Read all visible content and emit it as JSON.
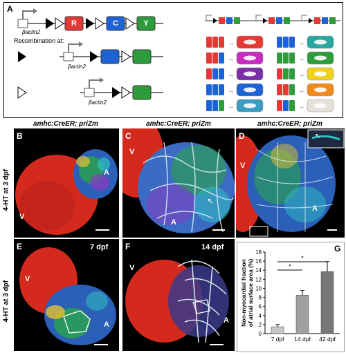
{
  "panelA": {
    "label": "A",
    "promoter": "βactin2",
    "cassettes": [
      "R",
      "C",
      "Y"
    ],
    "recombination_title": "Recombination at:",
    "combo_rows": [
      {
        "left": [
          "#e53935",
          "#e53935",
          "#e53935"
        ],
        "leftResult": "#e53935",
        "right": [
          "#1e63d6",
          "#1e63d6",
          "#1e63d6"
        ],
        "rightResult": "#2aa7a0"
      },
      {
        "left": [
          "#e53935",
          "#e53935",
          "#1e63d6"
        ],
        "leftResult": "#c72bc0",
        "right": [
          "#2e9c3a",
          "#2e9c3a",
          "#2e9c3a"
        ],
        "rightResult": "#2e9c3a"
      },
      {
        "left": [
          "#e53935",
          "#1e63d6",
          "#1e63d6"
        ],
        "leftResult": "#7a2fa8",
        "right": [
          "#e53935",
          "#2e9c3a",
          "#2e9c3a"
        ],
        "rightResult": "#f0d21e"
      },
      {
        "left": [
          "#1e63d6",
          "#1e63d6",
          "#1e63d6"
        ],
        "leftResult": "#1e63d6",
        "right": [
          "#e53935",
          "#e53935",
          "#2e9c3a"
        ],
        "rightResult": "#f08a1e"
      },
      {
        "left": [
          "#1e63d6",
          "#1e63d6",
          "#2e9c3a"
        ],
        "leftResult": "#3a9cc0",
        "right": [
          "#e53935",
          "#1e63d6",
          "#2e9c3a"
        ],
        "rightResult": "#e6e2da"
      }
    ]
  },
  "panels": {
    "B": {
      "label": "B",
      "title": "amhc:CreER; priZm",
      "marks": [
        "A",
        "V"
      ]
    },
    "C": {
      "label": "C",
      "title": "amhc:CreER; priZm",
      "marks": [
        "V",
        "A"
      ]
    },
    "D": {
      "label": "D",
      "title": "amhc:CreER; priZm",
      "marks": [
        "V",
        "A"
      ]
    },
    "E": {
      "label": "E",
      "stage": "7 dpf",
      "marks": [
        "V",
        "A"
      ]
    },
    "F": {
      "label": "F",
      "stage": "14 dpf",
      "marks": [
        "V",
        "A"
      ]
    },
    "G": {
      "label": "G"
    }
  },
  "row_label_top": "4-HT at 3 dpf",
  "row_label_bottom": "4-HT at 3 dpf",
  "chart_data": {
    "type": "bar",
    "categories": [
      "7 dpf",
      "14 dpf",
      "42 dpf"
    ],
    "values": [
      1.5,
      8.5,
      13.7
    ],
    "errors": [
      0.5,
      1.0,
      2.2
    ],
    "ylabel": "Non-myocardial fraction of atrial surface area (%)",
    "ylim": [
      0,
      18
    ],
    "yticks": [
      0,
      2,
      4,
      6,
      8,
      10,
      12,
      14,
      16,
      18
    ],
    "bar_colors": [
      "#c8c8c8",
      "#a0a0a0",
      "#777777"
    ],
    "significance": [
      {
        "from": 0,
        "to": 1,
        "label": "*"
      },
      {
        "from": 0,
        "to": 2,
        "label": "*"
      }
    ]
  }
}
